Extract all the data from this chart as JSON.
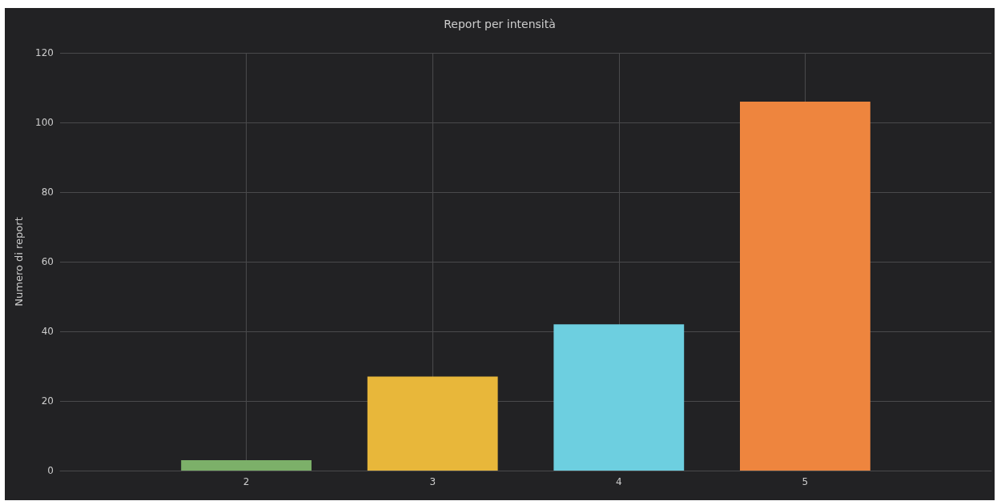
{
  "chart_data": {
    "type": "bar",
    "title": "Report per intensità",
    "ylabel": "Numero di report",
    "x": [
      2,
      3,
      4,
      5
    ],
    "values": [
      3,
      27,
      42,
      106
    ],
    "colors": [
      "#7cb069",
      "#e8b73a",
      "#6dcfe0",
      "#ee853e"
    ],
    "xlim": [
      1,
      6
    ],
    "xticks": [
      2,
      3,
      4,
      5
    ],
    "ylim": [
      0,
      120
    ],
    "yticks": [
      0,
      20,
      40,
      60,
      80,
      100,
      120
    ],
    "grid": true
  }
}
